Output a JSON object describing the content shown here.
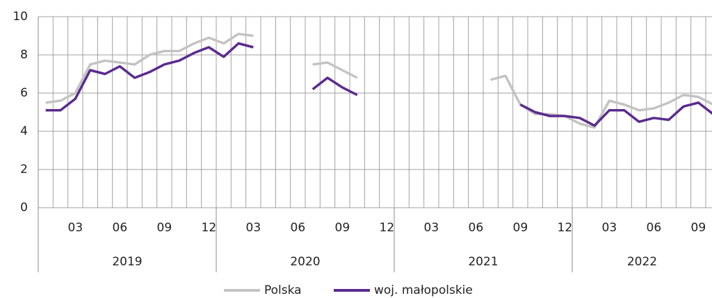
{
  "chart_data": {
    "type": "line",
    "categories": [
      null,
      null,
      "03",
      null,
      null,
      "06",
      null,
      null,
      "09",
      null,
      null,
      "12",
      null,
      null,
      "03",
      null,
      null,
      "06",
      null,
      null,
      "09",
      null,
      null,
      "12",
      null,
      null,
      "03",
      null,
      null,
      "06",
      null,
      null,
      "09",
      null,
      null,
      "12",
      null,
      null,
      "03",
      null,
      null,
      "06",
      null,
      null,
      "09",
      null
    ],
    "years": [
      "2019",
      "2020",
      "2021",
      "2022"
    ],
    "series": [
      {
        "name": "Polska",
        "color": "#c3c3c3",
        "values": [
          5.5,
          5.6,
          6.0,
          7.5,
          7.7,
          7.6,
          7.5,
          8.0,
          8.2,
          8.2,
          8.6,
          8.9,
          8.6,
          9.1,
          9.0,
          null,
          null,
          null,
          7.5,
          7.6,
          7.2,
          6.8,
          null,
          null,
          null,
          null,
          null,
          null,
          null,
          null,
          6.7,
          6.9,
          5.4,
          4.9,
          4.9,
          4.8,
          4.4,
          4.2,
          5.6,
          5.4,
          5.1,
          5.2,
          5.5,
          5.9,
          5.8,
          5.4
        ]
      },
      {
        "name": "woj. małopolskie",
        "color": "#5a2a8e",
        "values": [
          5.1,
          5.1,
          5.7,
          7.2,
          7.0,
          7.4,
          6.8,
          7.1,
          7.5,
          7.7,
          8.1,
          8.4,
          7.9,
          8.6,
          8.4,
          null,
          null,
          null,
          6.2,
          6.8,
          6.3,
          5.9,
          null,
          null,
          null,
          null,
          null,
          null,
          null,
          null,
          null,
          null,
          5.4,
          5.0,
          4.8,
          4.8,
          4.7,
          4.3,
          5.1,
          5.1,
          4.5,
          4.7,
          4.6,
          5.3,
          5.5,
          4.9
        ]
      }
    ],
    "ylim": [
      0,
      10
    ],
    "yticks": [
      0,
      2,
      4,
      6,
      8,
      10
    ],
    "grid": true
  }
}
